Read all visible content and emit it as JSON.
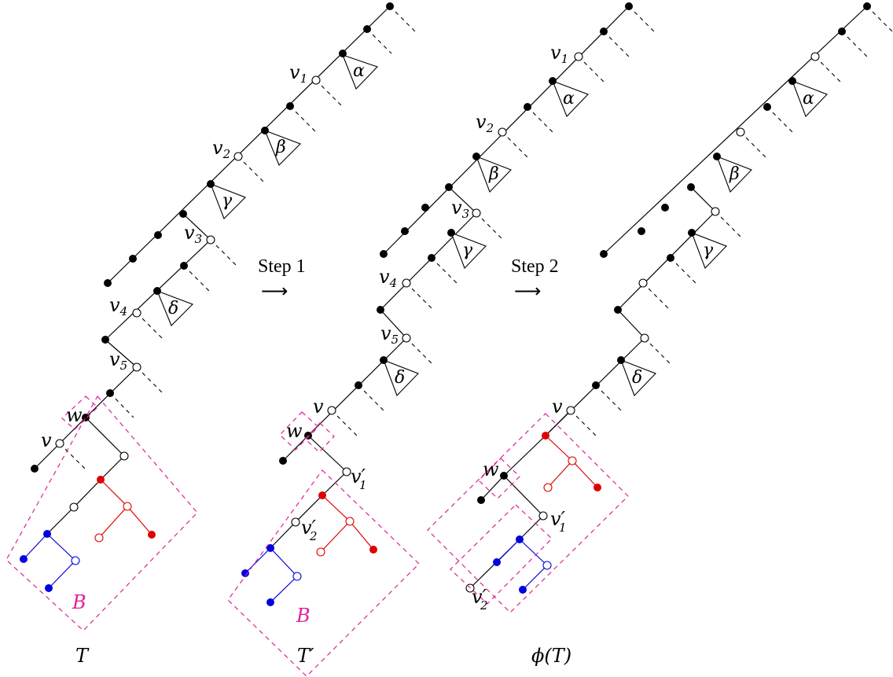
{
  "trees": [
    {
      "title": "T",
      "box_label": "B",
      "labels": {
        "v1": "v",
        "v1_sub": "1",
        "v2": "v",
        "v2_sub": "2",
        "v3": "v",
        "v3_sub": "3",
        "v4": "v",
        "v4_sub": "4",
        "v5": "v",
        "v5_sub": "5",
        "v": "v",
        "w": "w"
      },
      "subtrees": [
        "α",
        "β",
        "γ",
        "δ"
      ]
    },
    {
      "title": "T′",
      "box_label": "B",
      "labels": {
        "v1": "v",
        "v1_sub": "1",
        "v2": "v",
        "v2_sub": "2",
        "v3": "v",
        "v3_sub": "3",
        "v4": "v",
        "v4_sub": "4",
        "v5": "v",
        "v5_sub": "5",
        "v": "v",
        "w": "w",
        "vp1": "v′",
        "vp1_sub": "1",
        "vp2": "v′",
        "vp2_sub": "2"
      },
      "subtrees": [
        "α",
        "β",
        "γ",
        "δ"
      ]
    },
    {
      "title": "ϕ(T)",
      "labels": {
        "v": "v",
        "w": "w",
        "vp1": "v′",
        "vp1_sub": "1",
        "vp2": "v′",
        "vp2_sub": "2"
      },
      "subtrees": [
        "α",
        "β",
        "γ",
        "δ"
      ]
    }
  ],
  "steps": [
    {
      "label": "Step 1",
      "arrow": "⟶"
    },
    {
      "label": "Step 2",
      "arrow": "⟶"
    }
  ],
  "colors": {
    "black": "#000000",
    "red": "#e00000",
    "blue": "#0000e0",
    "box": "#e0209a"
  }
}
